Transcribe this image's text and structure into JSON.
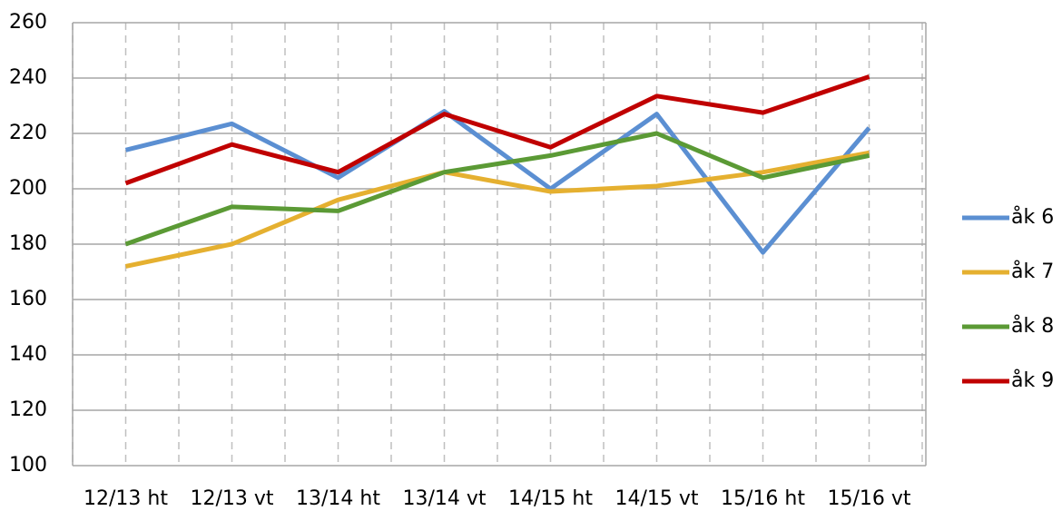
{
  "chart_data": {
    "type": "line",
    "categories": [
      "12/13 ht",
      "12/13 vt",
      "13/14 ht",
      "13/14 vt",
      "14/15 ht",
      "14/15 vt",
      "15/16 ht",
      "15/16 vt"
    ],
    "series": [
      {
        "name": "åk 6",
        "color": "#5b8fd2",
        "values": [
          214,
          223.5,
          204,
          228,
          200,
          227,
          177,
          222
        ]
      },
      {
        "name": "åk 7",
        "color": "#e5b030",
        "values": [
          172,
          180,
          196,
          206,
          199,
          201,
          206,
          213
        ]
      },
      {
        "name": "åk 8",
        "color": "#5b9a35",
        "values": [
          180,
          193.5,
          192,
          206,
          212,
          220,
          204,
          212
        ]
      },
      {
        "name": "åk 9",
        "color": "#c00000",
        "values": [
          202,
          216,
          206,
          227,
          215,
          233.5,
          227.5,
          240.5
        ]
      }
    ],
    "ylim": [
      100,
      260
    ],
    "yticks": [
      100,
      120,
      140,
      160,
      180,
      200,
      220,
      240,
      260
    ],
    "grid": true,
    "legend": "right"
  }
}
